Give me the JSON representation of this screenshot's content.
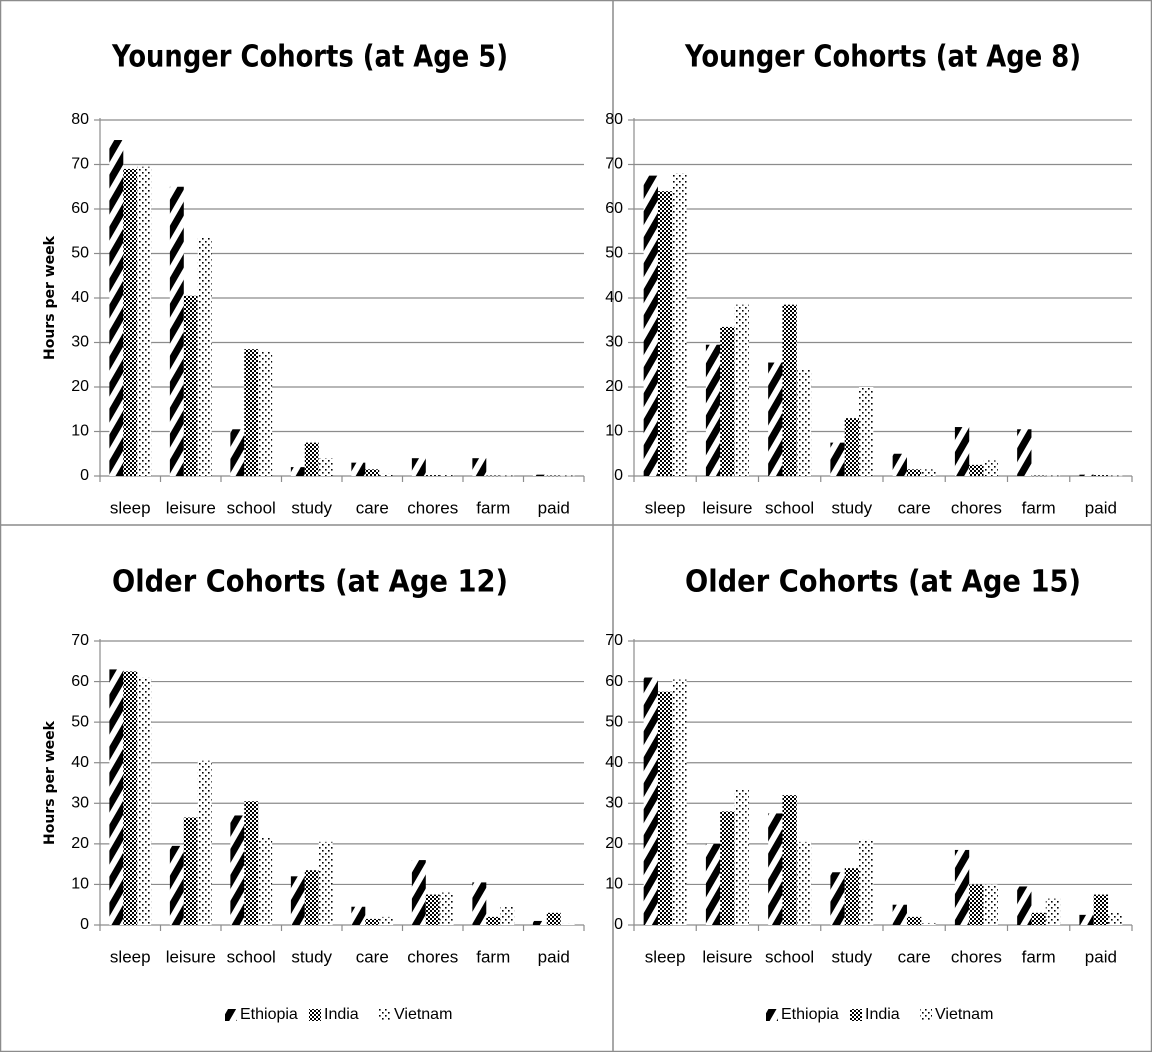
{
  "chart_data": [
    {
      "type": "bar",
      "title": "Younger Cohorts (at Age 5)",
      "xlabel": "",
      "ylabel": "Hours per week",
      "ylim": [
        0,
        80
      ],
      "ytick_step": 10,
      "grid": true,
      "legend": "none",
      "categories": [
        "sleep",
        "leisure",
        "school",
        "study",
        "care",
        "chores",
        "farm",
        "paid"
      ],
      "series": [
        {
          "name": "Ethiopia",
          "values": [
            75.5,
            65,
            10.5,
            2,
            3,
            4,
            4,
            0.3
          ]
        },
        {
          "name": "India",
          "values": [
            69,
            40.5,
            28.5,
            7.5,
            1.5,
            0.2,
            0.1,
            0.1
          ]
        },
        {
          "name": "Vietnam",
          "values": [
            69.5,
            53.5,
            28,
            4,
            0.5,
            0.2,
            0.1,
            0.1
          ]
        }
      ]
    },
    {
      "type": "bar",
      "title": "Younger Cohorts (at Age 8)",
      "xlabel": "",
      "ylabel": "",
      "ylim": [
        0,
        80
      ],
      "ytick_step": 10,
      "grid": true,
      "legend": "none",
      "categories": [
        "sleep",
        "leisure",
        "school",
        "study",
        "care",
        "chores",
        "farm",
        "paid"
      ],
      "series": [
        {
          "name": "Ethiopia",
          "values": [
            67.5,
            29.5,
            25.5,
            7.5,
            5,
            11,
            10.5,
            0.3
          ]
        },
        {
          "name": "India",
          "values": [
            64,
            33.5,
            38.5,
            13,
            1.5,
            2.5,
            0.1,
            0.2
          ]
        },
        {
          "name": "Vietnam",
          "values": [
            68,
            38.5,
            24,
            20,
            1.5,
            3.5,
            0.1,
            0.1
          ]
        }
      ]
    },
    {
      "type": "bar",
      "title": "Older Cohorts (at Age 12)",
      "xlabel": "",
      "ylabel": "Hours per week",
      "ylim": [
        0,
        70
      ],
      "ytick_step": 10,
      "grid": true,
      "legend": "bottom",
      "categories": [
        "sleep",
        "leisure",
        "school",
        "study",
        "care",
        "chores",
        "farm",
        "paid"
      ],
      "series": [
        {
          "name": "Ethiopia",
          "values": [
            63,
            19.5,
            27,
            12,
            4.5,
            16,
            10.5,
            1
          ]
        },
        {
          "name": "India",
          "values": [
            62.5,
            26.5,
            30.5,
            13.5,
            1.5,
            7.5,
            2,
            3
          ]
        },
        {
          "name": "Vietnam",
          "values": [
            61,
            40.5,
            21.5,
            20.5,
            2,
            8,
            4.5,
            0.3
          ]
        }
      ]
    },
    {
      "type": "bar",
      "title": "Older Cohorts (at Age 15)",
      "xlabel": "",
      "ylabel": "",
      "ylim": [
        0,
        70
      ],
      "ytick_step": 10,
      "grid": true,
      "legend": "bottom",
      "categories": [
        "sleep",
        "leisure",
        "school",
        "study",
        "care",
        "chores",
        "farm",
        "paid"
      ],
      "series": [
        {
          "name": "Ethiopia",
          "values": [
            61,
            20,
            27.5,
            13,
            5,
            18.5,
            9.5,
            2.5
          ]
        },
        {
          "name": "India",
          "values": [
            57.5,
            28,
            32,
            14,
            2,
            10,
            3,
            7.5
          ]
        },
        {
          "name": "Vietnam",
          "values": [
            60.5,
            33.5,
            20.5,
            21,
            0.5,
            10,
            6.5,
            3
          ]
        }
      ]
    }
  ]
}
